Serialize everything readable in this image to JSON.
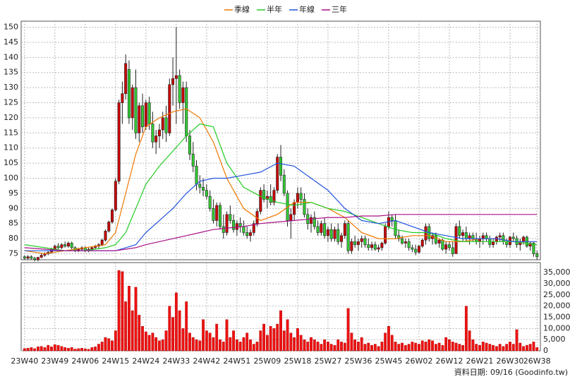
{
  "chart_data": {
    "type": "candlestick",
    "footer": "資料日期: 09/16 (Goodinfo.tw)",
    "up_color": "#cc0000",
    "down_color": "#33cc33",
    "xlim": [
      -1,
      153
    ],
    "xticks": [
      {
        "value": 0,
        "label": "23W40"
      },
      {
        "value": 9,
        "label": "23W49"
      },
      {
        "value": 18,
        "label": "24W06"
      },
      {
        "value": 27,
        "label": "24W15"
      },
      {
        "value": 36,
        "label": "24W24"
      },
      {
        "value": 45,
        "label": "24W33"
      },
      {
        "value": 54,
        "label": "24W42"
      },
      {
        "value": 63,
        "label": "24W51"
      },
      {
        "value": 72,
        "label": "25W09"
      },
      {
        "value": 81,
        "label": "25W18"
      },
      {
        "value": 90,
        "label": "25W27"
      },
      {
        "value": 99,
        "label": "25W36"
      },
      {
        "value": 108,
        "label": "25W45"
      },
      {
        "value": 117,
        "label": "26W02"
      },
      {
        "value": 126,
        "label": "26W12"
      },
      {
        "value": 135,
        "label": "26W21"
      },
      {
        "value": 144,
        "label": "26W30"
      },
      {
        "value": 152,
        "label": "26W38"
      }
    ],
    "ylim": [
      73,
      152
    ],
    "yticks": [
      75,
      80,
      85,
      90,
      95,
      100,
      105,
      110,
      115,
      120,
      125,
      130,
      135,
      140,
      145,
      150
    ],
    "grid": true,
    "candles": [
      [
        74,
        74.5,
        73,
        73.5
      ],
      [
        73.5,
        74.5,
        73,
        74
      ],
      [
        74,
        74.5,
        73,
        73.5
      ],
      [
        73.5,
        74,
        72.5,
        73
      ],
      [
        73,
        74,
        72.5,
        73.8
      ],
      [
        73.8,
        75,
        73.5,
        74.5
      ],
      [
        74.5,
        75.5,
        74,
        75
      ],
      [
        75,
        76,
        74.5,
        75.5
      ],
      [
        75.5,
        77,
        75,
        76.5
      ],
      [
        76.5,
        78,
        76,
        77.5
      ],
      [
        77.5,
        78.5,
        76.5,
        77
      ],
      [
        77,
        78.5,
        76.5,
        78
      ],
      [
        78,
        79,
        77,
        77.5
      ],
      [
        77.5,
        79,
        77,
        78.5
      ],
      [
        78.5,
        79,
        76.5,
        77
      ],
      [
        77,
        77.5,
        75.5,
        76
      ],
      [
        76,
        77,
        75.5,
        76.5
      ],
      [
        76.5,
        77.5,
        76,
        77
      ],
      [
        77,
        77.5,
        75.5,
        76
      ],
      [
        76,
        77,
        75.5,
        76.5
      ],
      [
        76.5,
        77.5,
        76,
        77
      ],
      [
        77,
        78,
        76.5,
        77.5
      ],
      [
        77.5,
        78.5,
        76.5,
        78
      ],
      [
        78,
        80,
        77.5,
        79.5
      ],
      [
        79.5,
        83,
        79,
        82.5
      ],
      [
        82.5,
        86,
        82,
        85.5
      ],
      [
        85.5,
        90,
        85,
        89.5
      ],
      [
        89.5,
        100,
        89,
        99
      ],
      [
        99,
        126,
        98,
        125
      ],
      [
        125,
        132,
        118,
        128
      ],
      [
        128,
        141,
        126,
        138
      ],
      [
        136,
        139,
        118,
        120
      ],
      [
        120,
        131,
        116,
        130
      ],
      [
        130,
        136,
        113,
        115
      ],
      [
        115,
        125,
        112,
        124
      ],
      [
        124,
        128,
        115,
        117
      ],
      [
        117,
        126,
        116,
        125
      ],
      [
        125,
        127,
        116,
        118
      ],
      [
        118,
        122,
        110,
        112
      ],
      [
        112,
        116,
        108,
        114
      ],
      [
        114,
        118,
        110,
        116
      ],
      [
        116,
        122,
        113,
        120
      ],
      [
        120,
        124,
        112,
        115
      ],
      [
        115,
        133,
        114,
        131
      ],
      [
        131,
        140,
        124,
        133
      ],
      [
        133,
        150,
        118,
        134
      ],
      [
        134,
        136,
        123,
        125
      ],
      [
        125,
        132,
        118,
        130
      ],
      [
        130,
        132,
        112,
        114
      ],
      [
        114,
        116,
        106,
        108
      ],
      [
        108,
        112,
        102,
        104
      ],
      [
        104,
        106,
        96,
        98
      ],
      [
        98,
        101,
        95,
        97
      ],
      [
        97,
        100,
        94,
        96
      ],
      [
        96,
        98,
        93,
        94
      ],
      [
        94,
        96,
        89,
        90
      ],
      [
        90,
        93,
        85,
        86
      ],
      [
        86,
        92,
        84,
        91
      ],
      [
        91,
        92,
        83,
        84
      ],
      [
        84,
        88,
        80,
        82
      ],
      [
        82,
        89,
        81,
        88
      ],
      [
        88,
        91,
        85,
        86
      ],
      [
        86,
        88,
        82,
        83
      ],
      [
        83,
        86,
        81,
        85
      ],
      [
        85,
        87,
        82,
        84
      ],
      [
        84,
        86,
        81,
        82
      ],
      [
        82,
        84,
        80,
        81
      ],
      [
        81,
        83,
        79,
        82
      ],
      [
        82,
        86,
        81,
        85
      ],
      [
        85,
        90,
        84,
        89
      ],
      [
        89,
        97,
        88,
        96
      ],
      [
        96,
        98,
        92,
        93
      ],
      [
        93,
        96,
        90,
        94
      ],
      [
        94,
        98,
        91,
        92
      ],
      [
        92,
        97,
        91,
        96
      ],
      [
        96,
        108,
        95,
        107
      ],
      [
        107,
        111,
        99,
        101
      ],
      [
        101,
        103,
        94,
        95
      ],
      [
        95,
        96,
        84,
        86
      ],
      [
        86,
        90,
        80,
        88
      ],
      [
        88,
        93,
        86,
        92
      ],
      [
        92,
        97,
        90,
        95
      ],
      [
        95,
        97,
        91,
        93
      ],
      [
        93,
        95,
        87,
        88
      ],
      [
        88,
        90,
        83,
        85
      ],
      [
        85,
        88,
        82,
        87
      ],
      [
        87,
        89,
        83,
        84
      ],
      [
        84,
        86,
        81,
        82
      ],
      [
        82,
        86,
        81,
        85
      ],
      [
        85,
        87,
        80,
        81
      ],
      [
        81,
        84,
        79,
        83
      ],
      [
        83,
        85,
        79,
        80
      ],
      [
        80,
        84,
        79,
        83
      ],
      [
        83,
        85,
        78,
        79
      ],
      [
        79,
        82,
        77,
        81
      ],
      [
        81,
        86,
        80,
        85
      ],
      [
        85,
        86,
        75,
        76
      ],
      [
        76,
        80,
        75,
        79
      ],
      [
        79,
        81,
        77,
        78
      ],
      [
        78,
        80,
        76,
        79
      ],
      [
        79,
        81,
        77,
        80
      ],
      [
        80,
        81,
        77,
        78
      ],
      [
        78,
        80,
        76,
        77
      ],
      [
        77,
        79,
        76,
        78
      ],
      [
        78,
        79,
        76,
        76.5
      ],
      [
        76.5,
        78,
        75.5,
        77
      ],
      [
        77,
        79,
        76,
        78.5
      ],
      [
        78.5,
        85,
        78,
        84
      ],
      [
        84,
        89,
        83,
        87
      ],
      [
        87,
        88,
        84,
        86
      ],
      [
        86,
        88,
        80,
        81
      ],
      [
        81,
        83,
        79,
        80
      ],
      [
        80,
        81,
        78,
        78.5
      ],
      [
        78.5,
        80,
        77,
        79
      ],
      [
        79,
        80,
        76,
        77
      ],
      [
        77,
        78,
        75.5,
        76.5
      ],
      [
        76.5,
        78,
        74.5,
        75.5
      ],
      [
        75.5,
        78,
        75,
        77.5
      ],
      [
        77.5,
        80,
        77,
        79.5
      ],
      [
        79.5,
        85,
        78,
        84
      ],
      [
        84,
        85,
        79,
        80
      ],
      [
        80,
        82,
        78,
        81
      ],
      [
        81,
        82,
        78,
        78.5
      ],
      [
        78.5,
        80,
        77,
        79.5
      ],
      [
        79.5,
        80,
        76,
        76.5
      ],
      [
        76.5,
        79,
        75,
        78
      ],
      [
        78,
        79,
        76,
        77
      ],
      [
        77,
        79,
        74,
        75
      ],
      [
        75,
        85,
        75,
        84
      ],
      [
        84,
        86,
        80,
        81
      ],
      [
        81,
        83,
        79,
        82
      ],
      [
        82,
        84,
        79,
        80
      ],
      [
        80,
        82,
        78,
        81
      ],
      [
        81,
        82,
        79,
        80
      ],
      [
        80,
        82,
        78,
        79
      ],
      [
        79,
        81,
        77,
        80
      ],
      [
        80,
        82,
        78,
        81
      ],
      [
        81,
        82,
        79,
        80
      ],
      [
        80,
        81,
        77,
        78
      ],
      [
        78,
        80,
        77,
        79
      ],
      [
        79,
        81,
        78,
        80.5
      ],
      [
        80.5,
        82,
        79,
        81
      ],
      [
        81,
        82,
        78,
        79
      ],
      [
        79,
        80,
        77,
        78
      ],
      [
        78,
        81,
        77,
        80.5
      ],
      [
        80.5,
        82,
        79,
        80
      ],
      [
        80,
        81,
        77,
        78
      ],
      [
        78,
        80,
        76,
        79
      ],
      [
        79,
        81,
        78,
        80.5
      ],
      [
        80.5,
        81,
        77,
        77.5
      ],
      [
        77.5,
        79,
        76,
        78.5
      ],
      [
        78.5,
        79,
        74,
        75
      ],
      [
        75,
        76,
        73,
        74
      ]
    ],
    "volume": {
      "color": "#ee1111",
      "ylim": [
        0,
        39500
      ],
      "yticks": [
        0,
        {
          "value": 5000,
          "label": "5,000"
        },
        {
          "value": 10000,
          "label": "10,000"
        },
        {
          "value": 15000,
          "label": "15,000"
        },
        {
          "value": 20000,
          "label": "20,000"
        },
        {
          "value": 25000,
          "label": "25,000"
        },
        {
          "value": 30000,
          "label": "30,000"
        },
        {
          "value": 35000,
          "label": "35,000"
        }
      ],
      "values": [
        1000,
        1200,
        1500,
        1000,
        1800,
        2000,
        1500,
        2500,
        1800,
        2800,
        2500,
        2000,
        1500,
        1200,
        1500,
        800,
        1000,
        1200,
        900,
        700,
        1500,
        1800,
        3000,
        4000,
        6000,
        5500,
        4500,
        9000,
        36000,
        35500,
        22000,
        29000,
        18000,
        28500,
        16000,
        11000,
        8500,
        7000,
        8000,
        6000,
        4500,
        5000,
        9000,
        20000,
        15000,
        26000,
        18000,
        10000,
        22000,
        8000,
        6000,
        5000,
        4500,
        14000,
        9000,
        8000,
        6000,
        12000,
        5000,
        4000,
        14000,
        6000,
        9000,
        5000,
        4000,
        6000,
        8000,
        5000,
        3000,
        4000,
        9000,
        12000,
        7000,
        11000,
        10000,
        12000,
        18000,
        9000,
        14000,
        8000,
        6000,
        10000,
        7000,
        5000,
        4000,
        6000,
        5000,
        4000,
        3000,
        5000,
        4000,
        3000,
        2500,
        5000,
        4000,
        3500,
        19000,
        8000,
        5000,
        4000,
        6000,
        3000,
        3500,
        2500,
        3000,
        2000,
        4000,
        8000,
        11000,
        7000,
        4000,
        3000,
        3500,
        2500,
        3000,
        4000,
        3500,
        3000,
        4500,
        4000,
        5000,
        4500,
        3000,
        3500,
        2500,
        6000,
        5000,
        4000,
        3500,
        3000,
        2500,
        20000,
        9000,
        5000,
        3000,
        2500,
        4000,
        3500,
        3000,
        2500,
        2000,
        3000,
        2000,
        3000,
        4000,
        3000,
        9500,
        3500,
        2000,
        2500,
        3000,
        4000,
        1500
      ]
    },
    "series": [
      {
        "name": "季線",
        "color": "#ee7700",
        "x": [
          0,
          6,
          12,
          18,
          24,
          27,
          30,
          33,
          36,
          40,
          44,
          48,
          52,
          56,
          60,
          65,
          70,
          75,
          80,
          85,
          90,
          95,
          100,
          105,
          110,
          115,
          120,
          125,
          130,
          135,
          140,
          145,
          152
        ],
        "values": [
          76,
          75,
          76,
          77,
          78,
          82,
          95,
          108,
          117,
          120,
          122,
          123,
          120,
          112,
          100,
          90,
          86,
          88,
          92,
          92,
          90,
          87,
          82,
          80,
          80,
          81,
          81,
          79,
          79,
          80,
          80,
          79,
          78
        ]
      },
      {
        "name": "半年",
        "color": "#22cc22",
        "x": [
          0,
          6,
          12,
          18,
          24,
          27,
          30,
          33,
          36,
          40,
          44,
          48,
          52,
          56,
          60,
          65,
          70,
          75,
          80,
          85,
          90,
          95,
          100,
          105,
          110,
          115,
          120,
          125,
          130,
          135,
          140,
          145,
          152
        ],
        "values": [
          78,
          77,
          76,
          76,
          77,
          78,
          82,
          90,
          98,
          104,
          109,
          114,
          118,
          117,
          105,
          97,
          94,
          92,
          91,
          92,
          90,
          89,
          87,
          85,
          83,
          82,
          82,
          80,
          79,
          79,
          79,
          79,
          78
        ]
      },
      {
        "name": "年線",
        "color": "#2255dd",
        "x": [
          0,
          6,
          12,
          18,
          24,
          27,
          30,
          33,
          36,
          40,
          44,
          48,
          52,
          56,
          60,
          65,
          70,
          75,
          80,
          85,
          90,
          95,
          100,
          105,
          110,
          115,
          120,
          125,
          130,
          135,
          140,
          145,
          152
        ],
        "values": [
          76,
          76,
          76,
          76,
          76,
          76,
          77,
          78,
          82,
          86,
          90,
          95,
          99,
          100,
          100,
          101,
          102,
          105,
          104,
          100,
          96,
          90,
          86,
          85,
          86,
          84,
          82,
          81,
          80,
          80,
          80,
          79,
          79
        ]
      },
      {
        "name": "三年",
        "color": "#aa1188",
        "x": [
          0,
          6,
          12,
          18,
          24,
          27,
          30,
          33,
          36,
          40,
          44,
          48,
          52,
          56,
          60,
          65,
          70,
          75,
          80,
          85,
          90,
          95,
          100,
          105,
          110,
          115,
          120,
          125,
          130,
          135,
          140,
          145,
          152
        ],
        "values": [
          77,
          76.5,
          76,
          76,
          76,
          76,
          76.5,
          77,
          78,
          79,
          80,
          81,
          82,
          83,
          83.5,
          84,
          85,
          85.5,
          86,
          86.5,
          87,
          87,
          87.5,
          87.5,
          88,
          88,
          88,
          88,
          88,
          88,
          88,
          88,
          88
        ]
      }
    ]
  }
}
